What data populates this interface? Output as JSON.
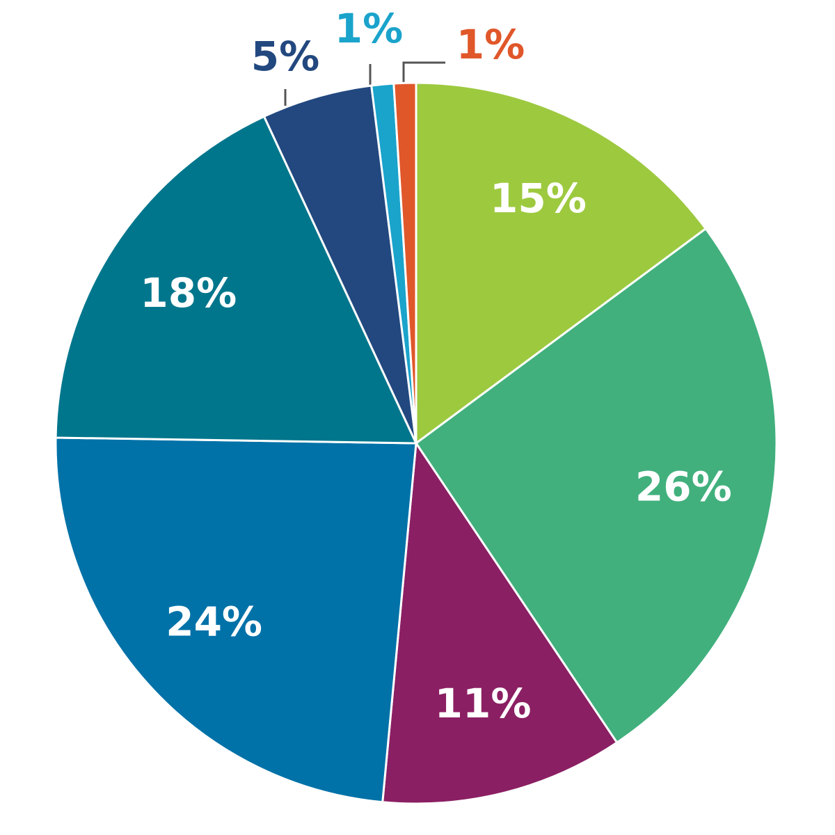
{
  "chart_data": {
    "type": "pie",
    "values": [
      15,
      26,
      11,
      24,
      18,
      5,
      1,
      1
    ],
    "value_labels": [
      "15%",
      "26%",
      "11%",
      "24%",
      "18%",
      "5%",
      "1%",
      "1%"
    ],
    "colors": [
      "#9dc93f",
      "#41b07d",
      "#8b1f63",
      "#0072a8",
      "#00768c",
      "#22487f",
      "#1aa3cb",
      "#e0572a"
    ]
  }
}
